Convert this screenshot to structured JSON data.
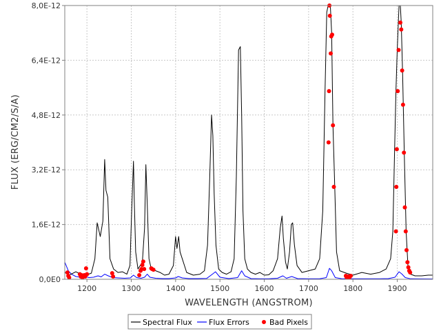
{
  "chart_data": {
    "type": "line",
    "xlabel": "WAVELENGTH (ANGSTROM)",
    "ylabel": "FLUX (ERG/CM2/S/A)",
    "xlim": [
      1150,
      1980
    ],
    "ylim": [
      0,
      8e-12
    ],
    "x_ticks": [
      1200,
      1300,
      1400,
      1500,
      1600,
      1700,
      1800,
      1900
    ],
    "x_tick_labels": [
      "1200",
      "1300",
      "1400",
      "1500",
      "1600",
      "1700",
      "1800",
      "1900"
    ],
    "y_ticks": [
      0,
      1.6e-12,
      3.2e-12,
      4.8e-12,
      6.4e-12,
      8e-12
    ],
    "y_tick_labels": [
      "0,0E0",
      "1,6E-12",
      "3,2E-12",
      "4,8E-12",
      "6,4E-12",
      "8,0E-12"
    ],
    "grid": true,
    "legend_position": "bottom",
    "series": [
      {
        "name": "Spectral Flux",
        "color": "#000000",
        "x": [
          1150,
          1160,
          1175,
          1190,
          1200,
          1210,
          1218,
          1223,
          1230,
          1236,
          1240,
          1243,
          1247,
          1252,
          1260,
          1270,
          1280,
          1290,
          1297,
          1301,
          1305,
          1307,
          1310,
          1315,
          1325,
          1330,
          1333,
          1336,
          1340,
          1345,
          1355,
          1365,
          1375,
          1385,
          1395,
          1400,
          1403,
          1407,
          1410,
          1415,
          1425,
          1440,
          1455,
          1465,
          1472,
          1477,
          1481,
          1484,
          1487,
          1491,
          1497,
          1505,
          1515,
          1525,
          1532,
          1537,
          1542,
          1546,
          1549,
          1552,
          1556,
          1562,
          1570,
          1580,
          1590,
          1600,
          1610,
          1620,
          1630,
          1636,
          1640,
          1643,
          1648,
          1652,
          1657,
          1661,
          1664,
          1668,
          1674,
          1685,
          1700,
          1715,
          1725,
          1732,
          1737,
          1741,
          1744,
          1746,
          1749,
          1752,
          1755,
          1759,
          1763,
          1770,
          1785,
          1800,
          1820,
          1840,
          1860,
          1875,
          1885,
          1890,
          1894,
          1897,
          1900,
          1904,
          1907,
          1909,
          1912,
          1916,
          1920,
          1924,
          1930,
          1940,
          1955,
          1970,
          1980
        ],
        "y": [
          2e-13,
          1.2e-13,
          2.2e-13,
          1.2e-13,
          1.3e-13,
          1.8e-13,
          6e-13,
          1.65e-12,
          1.25e-12,
          1.7e-12,
          3.5e-12,
          2.6e-12,
          2.4e-12,
          6e-13,
          3e-13,
          2e-13,
          2.2e-13,
          1.5e-13,
          4e-13,
          2e-12,
          3.45e-12,
          2.2e-12,
          8e-13,
          3e-13,
          5e-13,
          1.5e-12,
          3.35e-12,
          2.2e-12,
          6e-13,
          3e-13,
          2.5e-13,
          2e-13,
          1.2e-13,
          1.5e-13,
          4e-13,
          1.25e-12,
          9e-13,
          1.25e-12,
          8e-13,
          6e-13,
          2e-13,
          1.2e-13,
          1.5e-13,
          2.5e-13,
          1e-12,
          3e-12,
          4.8e-12,
          4.2e-12,
          2.5e-12,
          1e-12,
          3e-13,
          2e-13,
          1.5e-13,
          2.2e-13,
          6e-13,
          3e-12,
          6.7e-12,
          6.8e-12,
          4.8e-12,
          2e-12,
          6e-13,
          3e-13,
          2e-13,
          1.5e-13,
          2e-13,
          1.2e-13,
          1.3e-13,
          2.5e-13,
          6e-13,
          1.5e-12,
          1.85e-12,
          1.2e-12,
          5e-13,
          3e-13,
          8e-13,
          1.6e-12,
          1.65e-12,
          1e-12,
          4e-13,
          2e-13,
          2.5e-13,
          3e-13,
          6e-13,
          2e-12,
          5.5e-12,
          7.8e-12,
          8e-12,
          8e-12,
          8e-12,
          7.2e-12,
          4.5e-12,
          2.7e-12,
          8e-13,
          2.5e-13,
          1.8e-13,
          1.2e-13,
          2e-13,
          1.5e-13,
          2e-13,
          3e-13,
          6e-13,
          1.4e-12,
          3.8e-12,
          5.5e-12,
          6.7e-12,
          8e-12,
          8e-12,
          7.5e-12,
          6e-12,
          3.6e-12,
          1.4e-12,
          4e-13,
          1.5e-13,
          1e-13,
          1e-13,
          1.2e-13,
          1.2e-13
        ]
      },
      {
        "name": "Flux Errors",
        "color": "#0000ff",
        "x": [
          1150,
          1158,
          1165,
          1175,
          1185,
          1195,
          1205,
          1215,
          1225,
          1232,
          1240,
          1248,
          1258,
          1270,
          1285,
          1298,
          1305,
          1312,
          1322,
          1330,
          1336,
          1342,
          1355,
          1370,
          1385,
          1400,
          1406,
          1415,
          1430,
          1450,
          1470,
          1483,
          1490,
          1500,
          1520,
          1540,
          1549,
          1556,
          1570,
          1590,
          1610,
          1630,
          1642,
          1650,
          1662,
          1675,
          1700,
          1725,
          1740,
          1747,
          1752,
          1760,
          1775,
          1800,
          1830,
          1860,
          1880,
          1895,
          1904,
          1910,
          1918,
          1930,
          1950,
          1980
        ],
        "y": [
          5e-13,
          2.5e-13,
          1.5e-13,
          8e-14,
          6e-14,
          8e-14,
          5e-14,
          6e-14,
          1e-13,
          7e-14,
          1.5e-13,
          1e-13,
          5e-14,
          4e-14,
          3e-14,
          4e-14,
          1.2e-13,
          5e-14,
          3e-14,
          6e-14,
          1.5e-13,
          6e-14,
          3e-14,
          2e-14,
          2e-14,
          4e-14,
          8e-14,
          4e-14,
          2e-14,
          2e-14,
          2.5e-14,
          1.5e-13,
          2.2e-13,
          6e-14,
          2e-14,
          5e-14,
          2.5e-13,
          1e-13,
          2e-14,
          1.5e-14,
          1.5e-14,
          3e-14,
          1e-13,
          3e-14,
          8e-14,
          2e-14,
          1.5e-14,
          1.5e-14,
          5e-14,
          3.2e-13,
          2.5e-13,
          5e-14,
          1.5e-14,
          1.5e-14,
          1.5e-14,
          1.5e-14,
          2e-14,
          6e-14,
          2.2e-13,
          1.6e-13,
          5e-14,
          1.5e-14,
          1.2e-14,
          1e-14
        ]
      },
      {
        "name": "Bad Pixels",
        "color": "#ff0000",
        "points": [
          [
            1156,
            2e-13
          ],
          [
            1158,
            1e-13
          ],
          [
            1160,
            5e-14
          ],
          [
            1184,
            1.5e-13
          ],
          [
            1186,
            8e-14
          ],
          [
            1188,
            1.2e-13
          ],
          [
            1190,
            5e-14
          ],
          [
            1192,
            1e-13
          ],
          [
            1194,
            1.2e-13
          ],
          [
            1196,
            8e-14
          ],
          [
            1198,
            3.2e-13
          ],
          [
            1200,
            1.5e-13
          ],
          [
            1257,
            1.8e-13
          ],
          [
            1259,
            8e-14
          ],
          [
            1318,
            1.2e-13
          ],
          [
            1321,
            2.5e-13
          ],
          [
            1323,
            3e-13
          ],
          [
            1325,
            4.2e-13
          ],
          [
            1327,
            5.2e-13
          ],
          [
            1329,
            3e-13
          ],
          [
            1345,
            3.2e-13
          ],
          [
            1347,
            3e-13
          ],
          [
            1350,
            2.8e-13
          ],
          [
            1745,
            4e-12
          ],
          [
            1746,
            5.5e-12
          ],
          [
            1747,
            8e-12
          ],
          [
            1748,
            7.7e-12
          ],
          [
            1750,
            6.6e-12
          ],
          [
            1751,
            7.1e-12
          ],
          [
            1753,
            7.15e-12
          ],
          [
            1755,
            4.5e-12
          ],
          [
            1757,
            2.7e-12
          ],
          [
            1784,
            1e-13
          ],
          [
            1786,
            5e-14
          ],
          [
            1789,
            8e-14
          ],
          [
            1792,
            5e-14
          ],
          [
            1795,
            1e-13
          ],
          [
            1897,
            1.4e-12
          ],
          [
            1898,
            2.7e-12
          ],
          [
            1899,
            3.8e-12
          ],
          [
            1901,
            5.5e-12
          ],
          [
            1903,
            6.7e-12
          ],
          [
            1907,
            7.5e-12
          ],
          [
            1909,
            7.3e-12
          ],
          [
            1911,
            6.1e-12
          ],
          [
            1913,
            5.1e-12
          ],
          [
            1915,
            3.7e-12
          ],
          [
            1917,
            2.1e-12
          ],
          [
            1919,
            1.4e-12
          ],
          [
            1921,
            8.5e-13
          ],
          [
            1923,
            5e-13
          ],
          [
            1925,
            3.5e-13
          ],
          [
            1927,
            2.5e-13
          ],
          [
            1929,
            2e-13
          ]
        ]
      }
    ]
  }
}
